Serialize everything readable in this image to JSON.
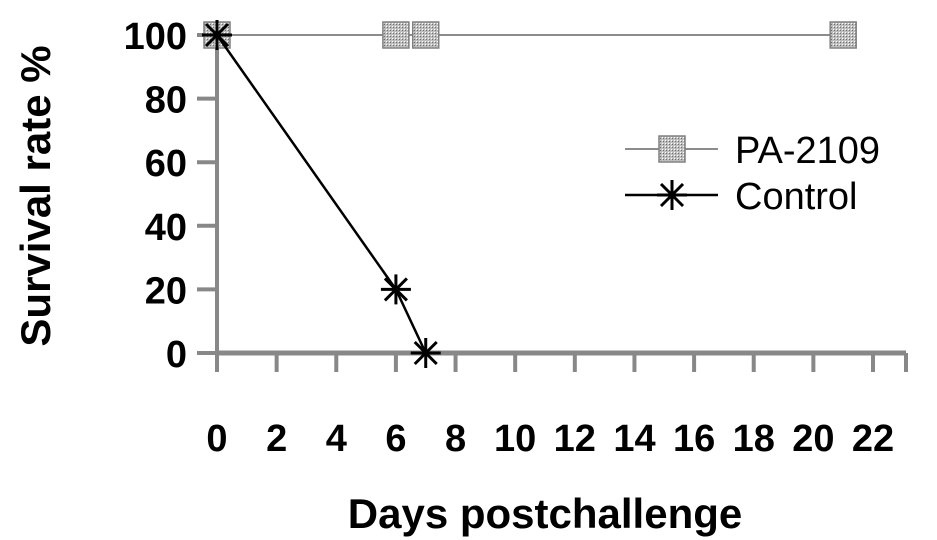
{
  "chart_data": {
    "type": "line",
    "title": "",
    "xlabel": "Days postchallenge",
    "ylabel": "Survival rate %",
    "xlim": [
      0,
      22
    ],
    "ylim": [
      0,
      100
    ],
    "x_ticks": [
      "0",
      "2",
      "4",
      "6",
      "8",
      "10",
      "12",
      "14",
      "16",
      "18",
      "20",
      "22"
    ],
    "y_ticks": [
      "0",
      "20",
      "40",
      "60",
      "80",
      "100"
    ],
    "grid": false,
    "legend_position": "right",
    "series": [
      {
        "name": "PA-2109",
        "marker": "square",
        "color": "#8c8c8c",
        "points": [
          {
            "x": 0,
            "y": 100
          },
          {
            "x": 6,
            "y": 100
          },
          {
            "x": 7,
            "y": 100
          },
          {
            "x": 21,
            "y": 100
          }
        ]
      },
      {
        "name": "Control",
        "marker": "asterisk",
        "color": "#000000",
        "points": [
          {
            "x": 0,
            "y": 100
          },
          {
            "x": 6,
            "y": 20
          },
          {
            "x": 7,
            "y": 0
          }
        ]
      }
    ]
  }
}
